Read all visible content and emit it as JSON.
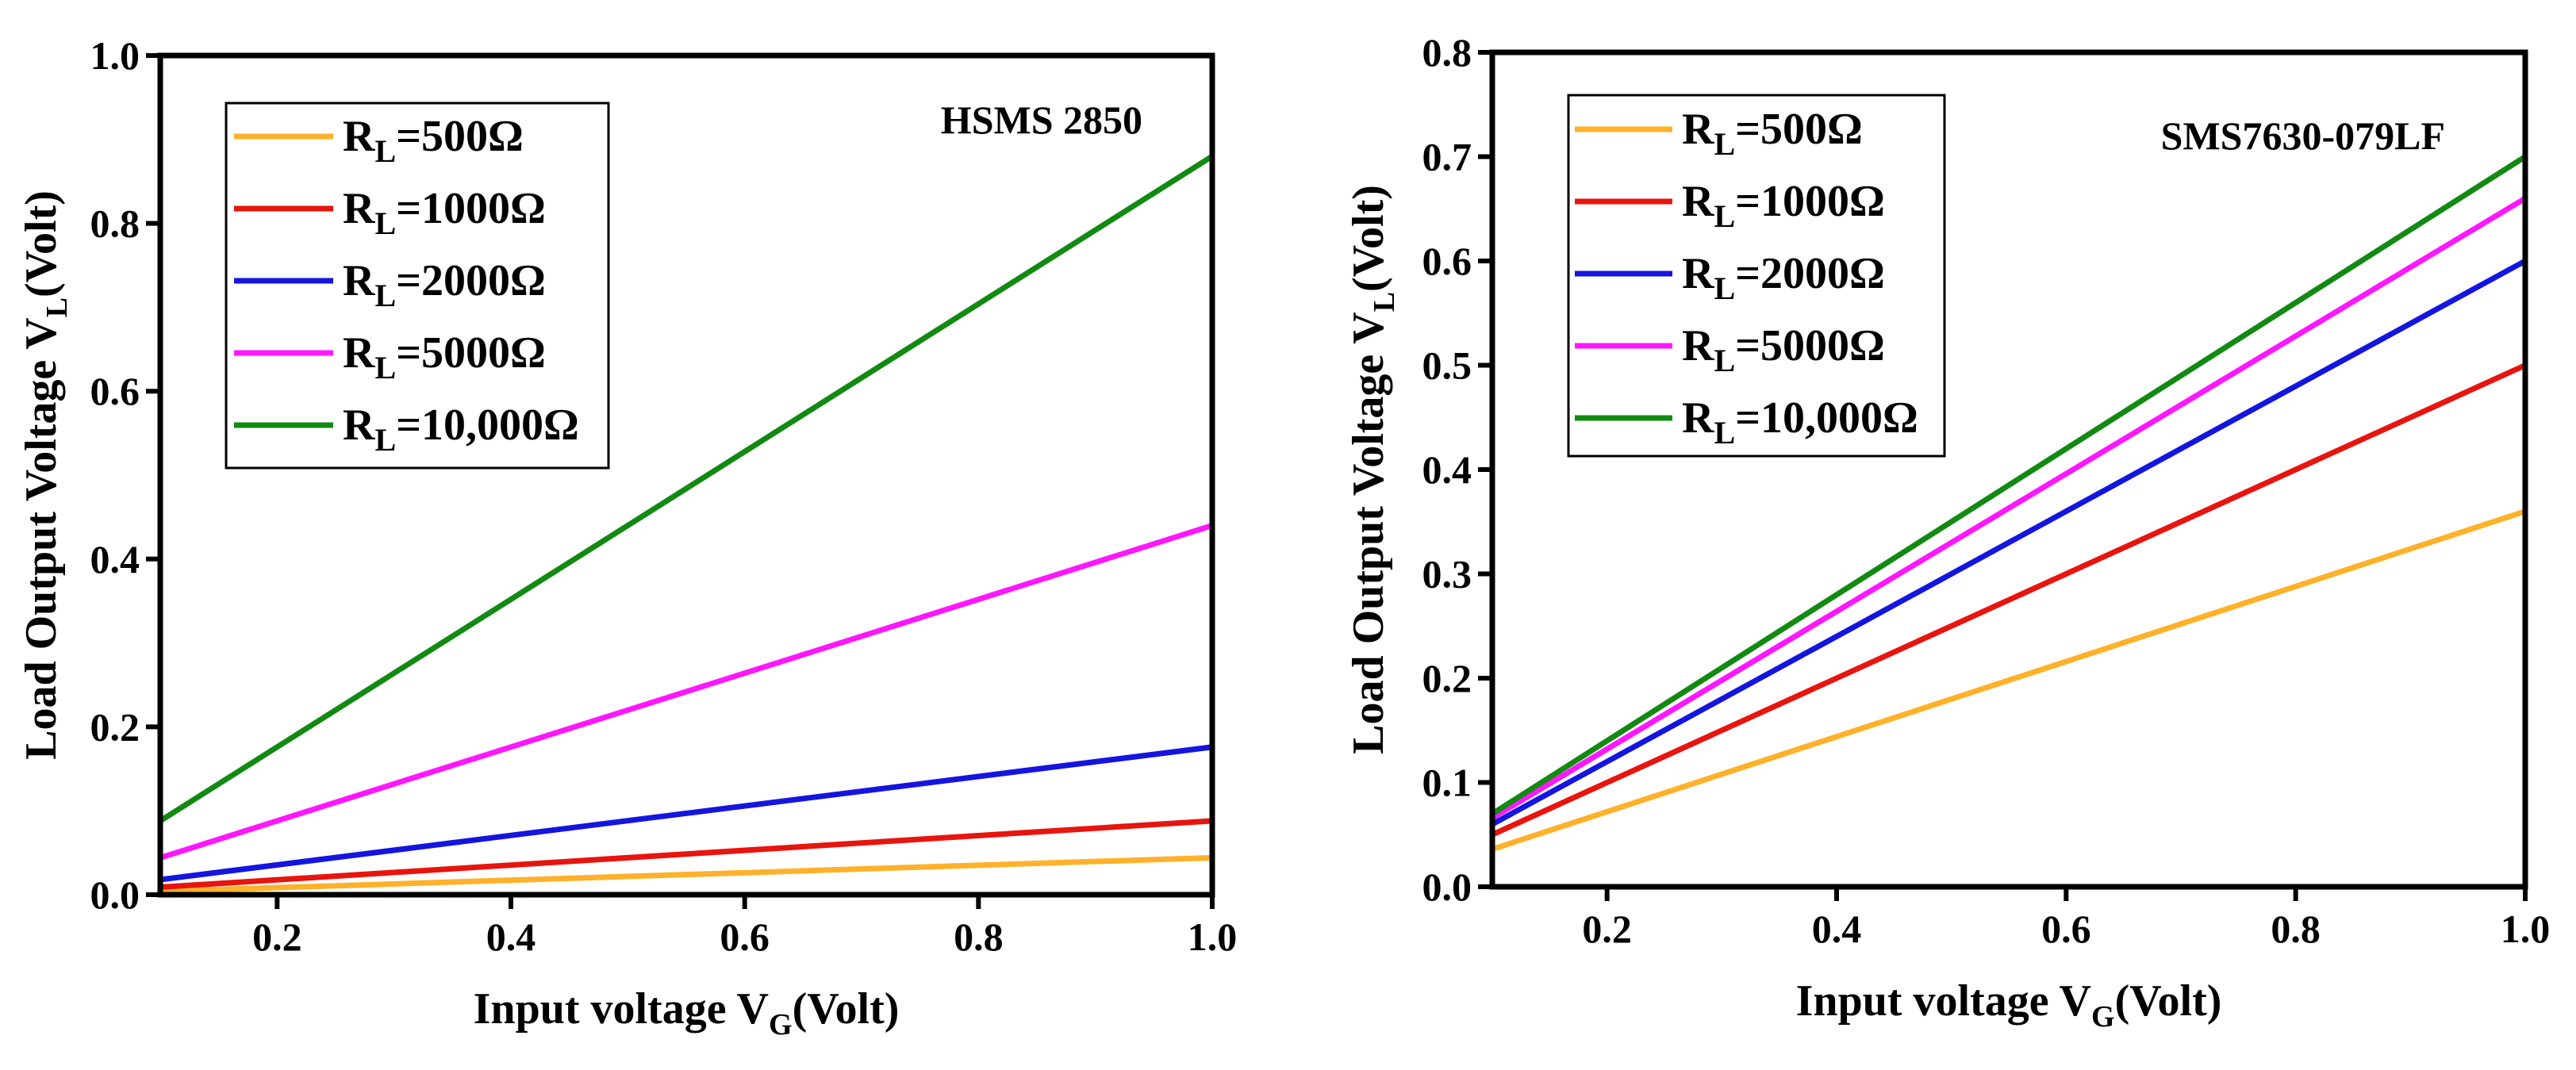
{
  "chart_data": [
    {
      "type": "line",
      "annotation": "HSMS 2850",
      "title": "",
      "xlabel": {
        "main": "Input voltage V",
        "sub": "G",
        "tail": "(Volt)"
      },
      "ylabel": {
        "main": "Load Output Voltage V",
        "sub": "L",
        "tail": "(Volt)"
      },
      "xlim": [
        0.1,
        1.0
      ],
      "ylim": [
        0.0,
        1.0
      ],
      "xticks": [
        0.2,
        0.4,
        0.6,
        0.8,
        1.0
      ],
      "xtick_labels": [
        "0.2",
        "0.4",
        "0.6",
        "0.8",
        "1.0"
      ],
      "yticks": [
        0.0,
        0.2,
        0.4,
        0.6,
        0.8,
        1.0
      ],
      "ytick_labels": [
        "0.0",
        "0.2",
        "0.4",
        "0.6",
        "0.8",
        "1.0"
      ],
      "grid": false,
      "legend_position": "top-left",
      "series": [
        {
          "name": "500Ω",
          "label_prefix": "R",
          "label_sub": "L",
          "label_suffix": "=500Ω",
          "color": "#FFB12A",
          "x": [
            0.1,
            1.0
          ],
          "y": [
            0.004,
            0.044
          ]
        },
        {
          "name": "1000Ω",
          "label_prefix": "R",
          "label_sub": "L",
          "label_suffix": "=1000Ω",
          "color": "#E8140E",
          "x": [
            0.1,
            1.0
          ],
          "y": [
            0.009,
            0.088
          ]
        },
        {
          "name": "2000Ω",
          "label_prefix": "R",
          "label_sub": "L",
          "label_suffix": "=2000Ω",
          "color": "#1515E0",
          "x": [
            0.1,
            1.0
          ],
          "y": [
            0.018,
            0.176
          ]
        },
        {
          "name": "5000Ω",
          "label_prefix": "R",
          "label_sub": "L",
          "label_suffix": "=5000Ω",
          "color": "#FF17FF",
          "x": [
            0.1,
            1.0
          ],
          "y": [
            0.044,
            0.44
          ]
        },
        {
          "name": "10,000Ω",
          "label_prefix": "R",
          "label_sub": "L",
          "label_suffix": "=10,000Ω",
          "color": "#128A12",
          "x": [
            0.1,
            1.0
          ],
          "y": [
            0.088,
            0.88
          ]
        }
      ]
    },
    {
      "type": "line",
      "annotation": "SMS7630-079LF",
      "title": "",
      "xlabel": {
        "main": "Input voltage V",
        "sub": "G",
        "tail": "(Volt)"
      },
      "ylabel": {
        "main": "Load Output Voltage V",
        "sub": "L",
        "tail": "(Volt)"
      },
      "xlim": [
        0.1,
        1.0
      ],
      "ylim": [
        0.0,
        0.8
      ],
      "xticks": [
        0.2,
        0.4,
        0.6,
        0.8,
        1.0
      ],
      "xtick_labels": [
        "0.2",
        "0.4",
        "0.6",
        "0.8",
        "1.0"
      ],
      "yticks": [
        0.0,
        0.1,
        0.2,
        0.3,
        0.4,
        0.5,
        0.6,
        0.7,
        0.8
      ],
      "ytick_labels": [
        "0.0",
        "0.1",
        "0.2",
        "0.3",
        "0.4",
        "0.5",
        "0.6",
        "0.7",
        "0.8"
      ],
      "grid": false,
      "legend_position": "top-left",
      "series": [
        {
          "name": "500Ω",
          "label_prefix": "R",
          "label_sub": "L",
          "label_suffix": "=500Ω",
          "color": "#FFB12A",
          "x": [
            0.1,
            1.0
          ],
          "y": [
            0.036,
            0.36
          ]
        },
        {
          "name": "1000Ω",
          "label_prefix": "R",
          "label_sub": "L",
          "label_suffix": "=1000Ω",
          "color": "#E8140E",
          "x": [
            0.1,
            1.0
          ],
          "y": [
            0.05,
            0.5
          ]
        },
        {
          "name": "2000Ω",
          "label_prefix": "R",
          "label_sub": "L",
          "label_suffix": "=2000Ω",
          "color": "#1515E0",
          "x": [
            0.1,
            1.0
          ],
          "y": [
            0.06,
            0.6
          ]
        },
        {
          "name": "5000Ω",
          "label_prefix": "R",
          "label_sub": "L",
          "label_suffix": "=5000Ω",
          "color": "#FF17FF",
          "x": [
            0.1,
            1.0
          ],
          "y": [
            0.066,
            0.66
          ]
        },
        {
          "name": "10,000Ω",
          "label_prefix": "R",
          "label_sub": "L",
          "label_suffix": "=10,000Ω",
          "color": "#128A12",
          "x": [
            0.1,
            1.0
          ],
          "y": [
            0.07,
            0.7
          ]
        }
      ]
    }
  ]
}
